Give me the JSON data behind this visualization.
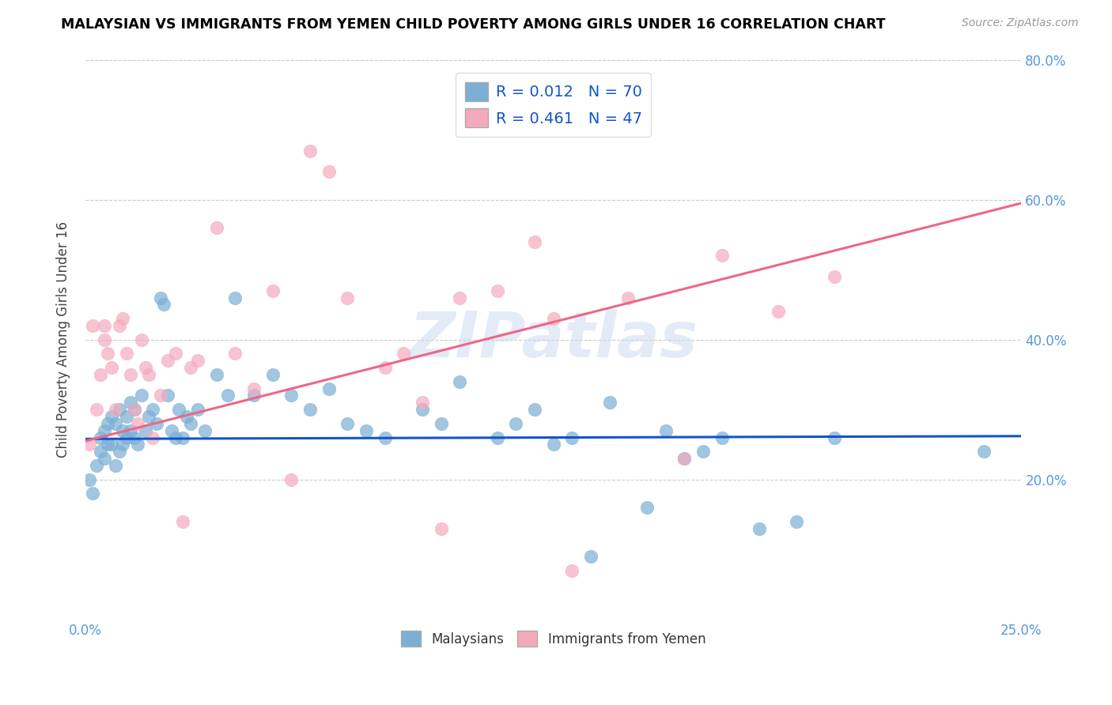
{
  "title": "MALAYSIAN VS IMMIGRANTS FROM YEMEN CHILD POVERTY AMONG GIRLS UNDER 16 CORRELATION CHART",
  "source": "Source: ZipAtlas.com",
  "ylabel": "Child Poverty Among Girls Under 16",
  "xlim": [
    0.0,
    0.25
  ],
  "ylim": [
    0.0,
    0.8
  ],
  "xticks": [
    0.0,
    0.05,
    0.1,
    0.15,
    0.2,
    0.25
  ],
  "xticklabels_show": [
    "0.0%",
    "",
    "",
    "",
    "",
    "25.0%"
  ],
  "yticks_right": [
    0.2,
    0.4,
    0.6,
    0.8
  ],
  "yticklabels_right": [
    "20.0%",
    "40.0%",
    "60.0%",
    "80.0%"
  ],
  "blue_color": "#7BAFD4",
  "pink_color": "#F4AABC",
  "blue_line_color": "#1155CC",
  "pink_line_color": "#EE6688",
  "R_blue": "0.012",
  "N_blue": "70",
  "R_pink": "0.461",
  "N_pink": "47",
  "legend_label_blue": "Malaysians",
  "legend_label_pink": "Immigrants from Yemen",
  "watermark": "ZIPatlas",
  "blue_scatter_x": [
    0.001,
    0.002,
    0.003,
    0.004,
    0.004,
    0.005,
    0.005,
    0.006,
    0.006,
    0.007,
    0.007,
    0.008,
    0.008,
    0.009,
    0.009,
    0.01,
    0.01,
    0.011,
    0.011,
    0.012,
    0.012,
    0.013,
    0.013,
    0.014,
    0.015,
    0.016,
    0.017,
    0.018,
    0.019,
    0.02,
    0.021,
    0.022,
    0.023,
    0.024,
    0.025,
    0.026,
    0.027,
    0.028,
    0.03,
    0.032,
    0.035,
    0.038,
    0.04,
    0.045,
    0.05,
    0.055,
    0.06,
    0.065,
    0.07,
    0.075,
    0.08,
    0.09,
    0.095,
    0.1,
    0.11,
    0.115,
    0.12,
    0.125,
    0.13,
    0.135,
    0.14,
    0.15,
    0.155,
    0.16,
    0.165,
    0.17,
    0.18,
    0.19,
    0.2,
    0.24
  ],
  "blue_scatter_y": [
    0.2,
    0.18,
    0.22,
    0.24,
    0.26,
    0.23,
    0.27,
    0.25,
    0.28,
    0.25,
    0.29,
    0.22,
    0.28,
    0.24,
    0.3,
    0.25,
    0.27,
    0.26,
    0.29,
    0.31,
    0.27,
    0.3,
    0.26,
    0.25,
    0.32,
    0.27,
    0.29,
    0.3,
    0.28,
    0.46,
    0.45,
    0.32,
    0.27,
    0.26,
    0.3,
    0.26,
    0.29,
    0.28,
    0.3,
    0.27,
    0.35,
    0.32,
    0.46,
    0.32,
    0.35,
    0.32,
    0.3,
    0.33,
    0.28,
    0.27,
    0.26,
    0.3,
    0.28,
    0.34,
    0.26,
    0.28,
    0.3,
    0.25,
    0.26,
    0.09,
    0.31,
    0.16,
    0.27,
    0.23,
    0.24,
    0.26,
    0.13,
    0.14,
    0.26,
    0.24
  ],
  "pink_scatter_x": [
    0.001,
    0.002,
    0.003,
    0.004,
    0.005,
    0.005,
    0.006,
    0.007,
    0.008,
    0.009,
    0.01,
    0.011,
    0.012,
    0.013,
    0.014,
    0.015,
    0.016,
    0.017,
    0.018,
    0.02,
    0.022,
    0.024,
    0.026,
    0.028,
    0.03,
    0.035,
    0.04,
    0.045,
    0.05,
    0.055,
    0.06,
    0.065,
    0.07,
    0.08,
    0.085,
    0.09,
    0.095,
    0.1,
    0.11,
    0.12,
    0.125,
    0.13,
    0.145,
    0.16,
    0.17,
    0.185,
    0.2
  ],
  "pink_scatter_y": [
    0.25,
    0.42,
    0.3,
    0.35,
    0.4,
    0.42,
    0.38,
    0.36,
    0.3,
    0.42,
    0.43,
    0.38,
    0.35,
    0.3,
    0.28,
    0.4,
    0.36,
    0.35,
    0.26,
    0.32,
    0.37,
    0.38,
    0.14,
    0.36,
    0.37,
    0.56,
    0.38,
    0.33,
    0.47,
    0.2,
    0.67,
    0.64,
    0.46,
    0.36,
    0.38,
    0.31,
    0.13,
    0.46,
    0.47,
    0.54,
    0.43,
    0.07,
    0.46,
    0.23,
    0.52,
    0.44,
    0.49
  ],
  "blue_trendline_x": [
    0.0,
    0.25
  ],
  "blue_trendline_y": [
    0.258,
    0.262
  ],
  "pink_trendline_x": [
    0.0,
    0.25
  ],
  "pink_trendline_y": [
    0.255,
    0.595
  ]
}
